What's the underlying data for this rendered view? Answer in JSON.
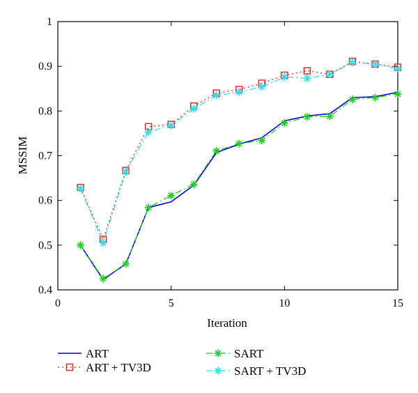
{
  "chart_data": {
    "type": "line",
    "title": "",
    "xlabel": "Iteration",
    "ylabel": "MSSIM",
    "xlim": [
      0,
      15
    ],
    "ylim": [
      0.4,
      1.0
    ],
    "xticks": [
      0,
      5,
      10,
      15
    ],
    "yticks": [
      0.4,
      0.5,
      0.6,
      0.7,
      0.8,
      0.9,
      1.0
    ],
    "xtick_labels": [
      "0",
      "5",
      "10",
      "15"
    ],
    "ytick_labels": [
      "0.4",
      "0.5",
      "0.6",
      "0.7",
      "0.8",
      "0.9",
      "1"
    ],
    "grid": false,
    "legend_position": "bottom",
    "x": [
      1,
      2,
      3,
      4,
      5,
      6,
      7,
      8,
      9,
      10,
      11,
      12,
      13,
      14,
      15
    ],
    "series": [
      {
        "name": "ART",
        "color": "#0000cc",
        "line": "solid",
        "marker": "none",
        "values": [
          0.5,
          0.423,
          0.458,
          0.584,
          0.597,
          0.634,
          0.707,
          0.726,
          0.74,
          0.778,
          0.789,
          0.794,
          0.83,
          0.832,
          0.842
        ]
      },
      {
        "name": "ART + TV3D",
        "color": "#e02020",
        "line": "dotted",
        "marker": "square",
        "values": [
          0.629,
          0.513,
          0.667,
          0.765,
          0.77,
          0.811,
          0.84,
          0.848,
          0.862,
          0.88,
          0.89,
          0.882,
          0.911,
          0.905,
          0.898
        ]
      },
      {
        "name": "SART",
        "color": "#22cc22",
        "line": "dashdot",
        "marker": "star",
        "values": [
          0.5,
          0.425,
          0.458,
          0.584,
          0.611,
          0.636,
          0.711,
          0.727,
          0.734,
          0.773,
          0.787,
          0.788,
          0.826,
          0.83,
          0.838
        ]
      },
      {
        "name": "SART + TV3D",
        "color": "#33ddee",
        "line": "dashdot",
        "marker": "star",
        "values": [
          0.627,
          0.505,
          0.664,
          0.753,
          0.768,
          0.805,
          0.835,
          0.842,
          0.854,
          0.876,
          0.873,
          0.882,
          0.909,
          0.905,
          0.895
        ]
      }
    ]
  }
}
